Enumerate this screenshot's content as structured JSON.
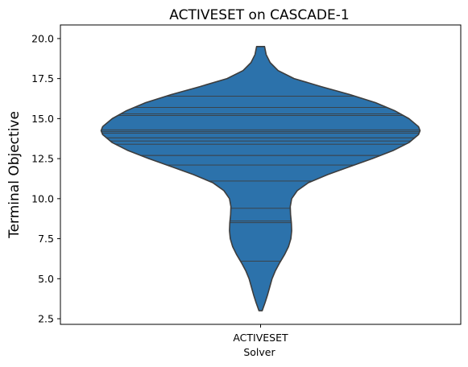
{
  "chart_data": {
    "type": "violin",
    "title": "ACTIVESET on CASCADE-1",
    "xlabel": "Solver",
    "ylabel": "Terminal Objective",
    "categories": [
      "ACTIVESET"
    ],
    "ylim": [
      2.15,
      20.85
    ],
    "yticks": [
      2.5,
      5.0,
      7.5,
      10.0,
      12.5,
      15.0,
      17.5,
      20.0
    ],
    "ytick_labels": [
      "2.5",
      "5.0",
      "7.5",
      "10.0",
      "12.5",
      "15.0",
      "17.5",
      "20.0"
    ],
    "grid": false,
    "color": "#2c72ab",
    "edge_color": "#3d3d3d",
    "data_range": [
      3.0,
      19.5
    ],
    "observations": [
      6.1,
      8.5,
      8.6,
      9.4,
      11.1,
      12.1,
      12.7,
      13.4,
      13.6,
      13.8,
      14.1,
      14.2,
      14.3,
      15.2,
      15.3,
      15.7,
      16.4
    ],
    "density_profile": [
      {
        "y": 3.0,
        "half_width": 0.01
      },
      {
        "y": 3.5,
        "half_width": 0.028
      },
      {
        "y": 4.0,
        "half_width": 0.044
      },
      {
        "y": 4.5,
        "half_width": 0.058
      },
      {
        "y": 5.0,
        "half_width": 0.072
      },
      {
        "y": 5.5,
        "half_width": 0.093
      },
      {
        "y": 6.0,
        "half_width": 0.12
      },
      {
        "y": 6.5,
        "half_width": 0.15
      },
      {
        "y": 7.0,
        "half_width": 0.175
      },
      {
        "y": 7.5,
        "half_width": 0.19
      },
      {
        "y": 8.0,
        "half_width": 0.195
      },
      {
        "y": 8.5,
        "half_width": 0.193
      },
      {
        "y": 9.0,
        "half_width": 0.188
      },
      {
        "y": 9.5,
        "half_width": 0.186
      },
      {
        "y": 10.0,
        "half_width": 0.195
      },
      {
        "y": 10.5,
        "half_width": 0.23
      },
      {
        "y": 11.0,
        "half_width": 0.3
      },
      {
        "y": 11.5,
        "half_width": 0.42
      },
      {
        "y": 12.0,
        "half_width": 0.56
      },
      {
        "y": 12.5,
        "half_width": 0.7
      },
      {
        "y": 13.0,
        "half_width": 0.83
      },
      {
        "y": 13.5,
        "half_width": 0.93
      },
      {
        "y": 14.0,
        "half_width": 0.99
      },
      {
        "y": 14.25,
        "half_width": 1.0
      },
      {
        "y": 14.5,
        "half_width": 0.99
      },
      {
        "y": 15.0,
        "half_width": 0.93
      },
      {
        "y": 15.5,
        "half_width": 0.84
      },
      {
        "y": 16.0,
        "half_width": 0.72
      },
      {
        "y": 16.5,
        "half_width": 0.56
      },
      {
        "y": 17.0,
        "half_width": 0.38
      },
      {
        "y": 17.5,
        "half_width": 0.21
      },
      {
        "y": 18.0,
        "half_width": 0.11
      },
      {
        "y": 18.5,
        "half_width": 0.06
      },
      {
        "y": 19.0,
        "half_width": 0.035
      },
      {
        "y": 19.5,
        "half_width": 0.025
      }
    ]
  }
}
